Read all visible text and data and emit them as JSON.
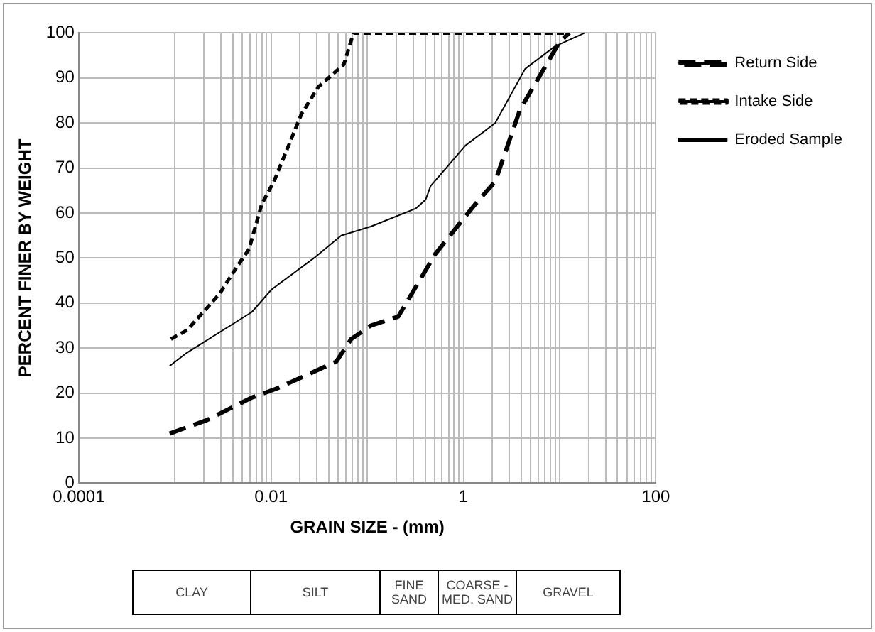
{
  "chart_data": {
    "type": "line",
    "xlabel": "GRAIN SIZE - (mm)",
    "ylabel": "PERCENT FINER BY WEIGHT",
    "log": "x",
    "xlim": [
      0.0001,
      100
    ],
    "ylim": [
      0,
      100
    ],
    "xticks": [
      0.0001,
      {
        "value": 0.001,
        "label": null
      },
      {
        "value": 0.002,
        "label": null
      },
      {
        "value": 0.003,
        "label": null
      },
      {
        "value": 0.004,
        "label": null
      },
      {
        "value": 0.005,
        "label": null
      },
      {
        "value": 0.006,
        "label": null
      },
      {
        "value": 0.007,
        "label": null
      },
      {
        "value": 0.008,
        "label": null
      },
      {
        "value": 0.009,
        "label": null
      },
      0.01,
      {
        "value": 0.02,
        "label": null
      },
      {
        "value": 0.03,
        "label": null
      },
      {
        "value": 0.04,
        "label": null
      },
      {
        "value": 0.05,
        "label": null
      },
      {
        "value": 0.06,
        "label": null
      },
      {
        "value": 0.07,
        "label": null
      },
      {
        "value": 0.08,
        "label": null
      },
      {
        "value": 0.09,
        "label": null
      },
      {
        "value": 0.1,
        "label": null
      },
      {
        "value": 0.2,
        "label": null
      },
      {
        "value": 0.3,
        "label": null
      },
      {
        "value": 0.4,
        "label": null
      },
      {
        "value": 0.5,
        "label": null
      },
      {
        "value": 0.6,
        "label": null
      },
      {
        "value": 0.7,
        "label": null
      },
      {
        "value": 0.8,
        "label": null
      },
      {
        "value": 0.9,
        "label": null
      },
      1,
      {
        "value": 2,
        "label": null
      },
      {
        "value": 3,
        "label": null
      },
      {
        "value": 4,
        "label": null
      },
      {
        "value": 5,
        "label": null
      },
      {
        "value": 6,
        "label": null
      },
      {
        "value": 7,
        "label": null
      },
      {
        "value": 8,
        "label": null
      },
      {
        "value": 9,
        "label": null
      },
      {
        "value": 10,
        "label": null
      },
      {
        "value": 20,
        "label": null
      },
      {
        "value": 30,
        "label": null
      },
      {
        "value": 40,
        "label": null
      },
      {
        "value": 50,
        "label": null
      },
      {
        "value": 60,
        "label": null
      },
      {
        "value": 70,
        "label": null
      },
      {
        "value": 80,
        "label": null
      },
      {
        "value": 90,
        "label": null
      },
      100
    ],
    "yticks": [
      0,
      10,
      20,
      30,
      40,
      50,
      60,
      70,
      80,
      90,
      100
    ],
    "grid": true,
    "legend": "right",
    "marker": "none",
    "series": [
      {
        "name": "Return Side",
        "color": "#000000",
        "line_style": "dashed",
        "x": [
          0.00088,
          0.00215,
          0.0063,
          0.0114,
          0.0477,
          0.068,
          0.109,
          0.21,
          0.513,
          1.33,
          2.14,
          3.88,
          10,
          12.6
        ],
        "values": [
          11,
          14,
          19,
          21,
          27,
          32,
          35,
          37,
          51,
          62,
          67,
          83,
          98,
          100
        ]
      },
      {
        "name": "Intake Side",
        "color": "#000000",
        "line_style": "dotted",
        "x": [
          0.00091,
          0.00134,
          0.0029,
          0.0044,
          0.0059,
          0.008,
          0.0107,
          0.0207,
          0.031,
          0.057,
          0.072,
          0.3,
          12.6
        ],
        "values": [
          32,
          34,
          42,
          48,
          52,
          62,
          67,
          82,
          88,
          93,
          100,
          100,
          100
        ]
      },
      {
        "name": "Eroded Sample",
        "color": "#000000",
        "line_style": "solid",
        "x": [
          0.00088,
          0.00134,
          0.0063,
          0.0101,
          0.0279,
          0.0536,
          0.109,
          0.319,
          0.405,
          0.456,
          1.05,
          2.14,
          4.37,
          8.9,
          18.2
        ],
        "values": [
          26,
          29,
          38,
          43,
          50,
          55,
          57,
          61,
          63,
          66,
          75,
          80,
          92,
          97,
          100
        ]
      }
    ],
    "annotations": [
      "CLAY",
      "SILT",
      "FINE SAND",
      "COARSE - MED. SAND",
      "GRAVEL"
    ]
  }
}
